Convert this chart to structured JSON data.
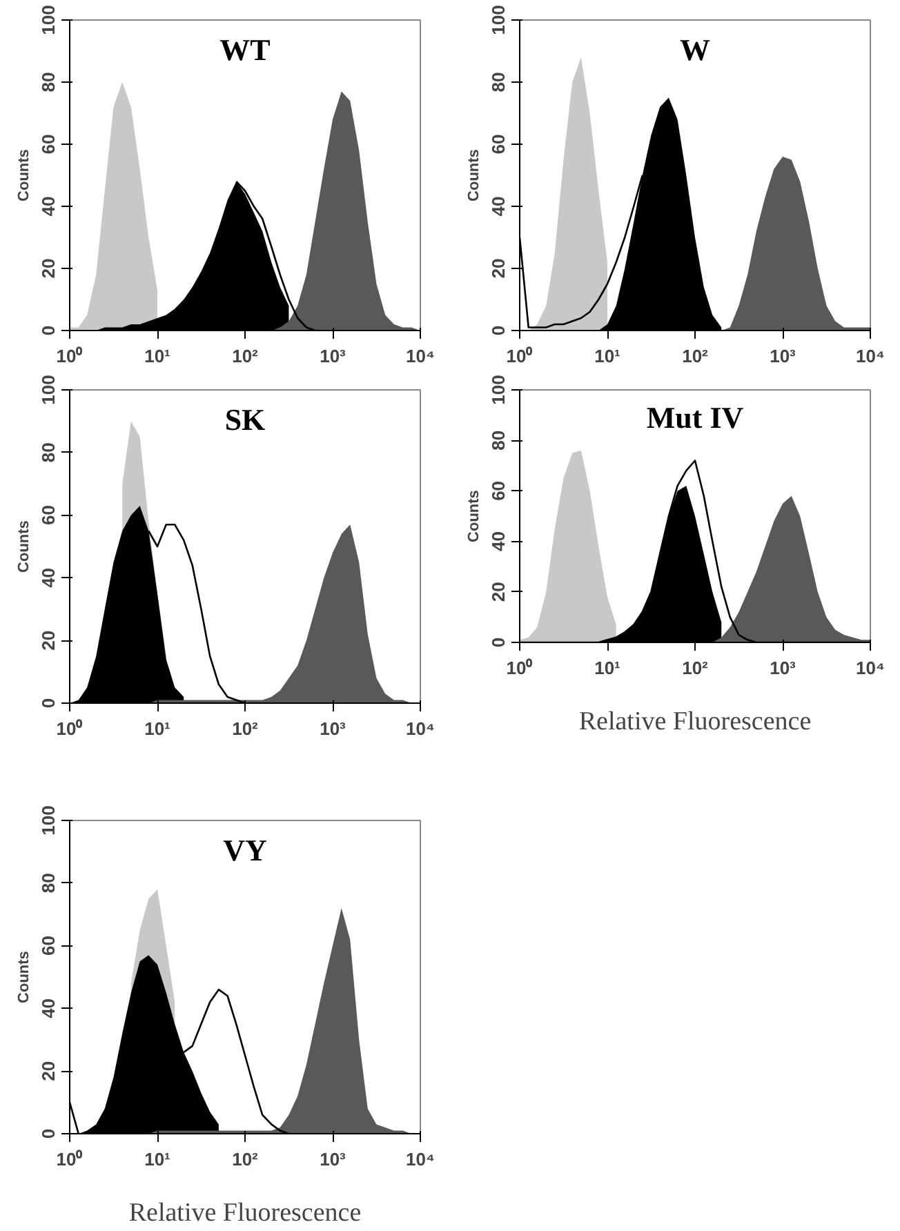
{
  "chart_data": [
    {
      "type": "area",
      "title": "WT",
      "ylabel": "Counts",
      "log": "x",
      "xlim": [
        1,
        10000
      ],
      "ylim": [
        0,
        100
      ],
      "xticks": [
        {
          "value": 1,
          "label": "10⁰"
        },
        {
          "value": 10,
          "label": "10¹"
        },
        {
          "value": 100,
          "label": "10²"
        },
        {
          "value": 1000,
          "label": "10³"
        },
        {
          "value": 10000,
          "label": "10⁴"
        }
      ],
      "yticks": [
        0,
        20,
        40,
        60,
        80,
        100
      ],
      "x": [
        1,
        1.26,
        1.58,
        2,
        2.51,
        3.16,
        3.98,
        5.01,
        6.31,
        7.94,
        10,
        12.6,
        15.8,
        20,
        25.1,
        31.6,
        39.8,
        50.1,
        63.1,
        79.4,
        100,
        126,
        158,
        200,
        251,
        316,
        398,
        501,
        631,
        794,
        1000,
        1260,
        1580,
        2000,
        2510,
        3160,
        3980,
        5010,
        6310,
        7940,
        10000
      ],
      "series": [
        {
          "color": "#c8c8c8",
          "x": [
            1,
            1.26,
            1.58,
            2,
            2.51,
            3.16,
            3.98,
            5.01,
            6.31,
            7.94,
            10
          ],
          "values": [
            1,
            1,
            5,
            18,
            45,
            72,
            80,
            72,
            52,
            30,
            13
          ]
        },
        {
          "color": "#000000",
          "x": [
            1,
            1.26,
            1.58,
            2,
            2.51,
            3.16,
            3.98,
            5.01,
            6.31,
            7.94,
            10,
            12.6,
            15.8,
            20,
            25.1,
            31.6,
            39.8,
            50.1,
            63.1,
            79.4,
            100,
            126,
            158,
            200,
            251,
            316
          ],
          "values": [
            0,
            0,
            0,
            0,
            1,
            1,
            1,
            2,
            2,
            3,
            4,
            5,
            7,
            10,
            14,
            19,
            25,
            33,
            42,
            48,
            44,
            38,
            32,
            22,
            14,
            8
          ]
        },
        {
          "color": "#595959",
          "values": [
            0,
            0,
            0,
            0,
            0,
            0,
            0,
            0,
            0,
            0,
            0,
            0,
            0,
            0,
            0,
            0,
            0,
            0,
            0,
            0,
            0,
            0,
            0,
            0,
            1,
            3,
            8,
            18,
            35,
            52,
            68,
            77,
            74,
            58,
            35,
            15,
            5,
            2,
            1,
            1,
            0
          ]
        },
        {
          "type": "line",
          "color": "#000000",
          "values": [
            null,
            null,
            null,
            null,
            null,
            null,
            null,
            null,
            null,
            null,
            null,
            null,
            null,
            null,
            null,
            null,
            null,
            null,
            null,
            48,
            45,
            40,
            36,
            27,
            18,
            10,
            4,
            1,
            0,
            null,
            null,
            null,
            null,
            null,
            null,
            null,
            null,
            null,
            null,
            null,
            null
          ]
        }
      ]
    },
    {
      "type": "area",
      "title": "W",
      "ylabel": "Counts",
      "log": "x",
      "xlim": [
        1,
        10000
      ],
      "ylim": [
        0,
        100
      ],
      "xticks": [
        {
          "value": 1,
          "label": "10⁰"
        },
        {
          "value": 10,
          "label": "10¹"
        },
        {
          "value": 100,
          "label": "10²"
        },
        {
          "value": 1000,
          "label": "10³"
        },
        {
          "value": 10000,
          "label": "10⁴"
        }
      ],
      "yticks": [
        0,
        20,
        40,
        60,
        80,
        100
      ],
      "x": [
        1,
        1.26,
        1.58,
        2,
        2.51,
        3.16,
        3.98,
        5.01,
        6.31,
        7.94,
        10,
        12.6,
        15.8,
        20,
        25.1,
        31.6,
        39.8,
        50.1,
        63.1,
        79.4,
        100,
        126,
        158,
        200,
        251,
        316,
        398,
        501,
        631,
        794,
        1000,
        1260,
        1580,
        2000,
        2510,
        3160,
        3980,
        5010,
        6310,
        7940,
        10000
      ],
      "series": [
        {
          "color": "#c8c8c8",
          "x": [
            1,
            1.26,
            1.58,
            2,
            2.51,
            3.16,
            3.98,
            5.01,
            6.31,
            7.94,
            10
          ],
          "values": [
            0,
            0,
            2,
            8,
            25,
            55,
            80,
            88,
            70,
            45,
            22
          ]
        },
        {
          "color": "#000000",
          "x": [
            7.94,
            10,
            12.6,
            15.8,
            20,
            25.1,
            31.6,
            39.8,
            50.1,
            63.1,
            79.4,
            100,
            126,
            158,
            200
          ],
          "values": [
            0,
            2,
            8,
            20,
            35,
            50,
            63,
            72,
            75,
            68,
            50,
            30,
            14,
            5,
            1
          ]
        },
        {
          "color": "#595959",
          "values": [
            0,
            0,
            0,
            0,
            0,
            0,
            0,
            0,
            0,
            0,
            0,
            0,
            0,
            0,
            0,
            0,
            0,
            0,
            0,
            0,
            0,
            0,
            0,
            0,
            1,
            8,
            18,
            32,
            43,
            52,
            56,
            55,
            48,
            35,
            20,
            8,
            3,
            1,
            1,
            1,
            1
          ]
        },
        {
          "type": "line",
          "color": "#000000",
          "values": [
            30,
            1,
            1,
            1,
            2,
            2,
            3,
            4,
            6,
            10,
            15,
            22,
            30,
            40,
            50,
            null,
            null,
            null,
            null,
            null,
            null,
            null,
            null,
            null,
            null,
            null,
            null,
            null,
            null,
            null,
            null,
            null,
            null,
            null,
            null,
            null,
            null,
            null,
            null,
            null,
            null
          ]
        }
      ]
    },
    {
      "type": "area",
      "title": "SK",
      "ylabel": "Counts",
      "log": "x",
      "xlim": [
        1,
        10000
      ],
      "ylim": [
        0,
        100
      ],
      "xticks": [
        {
          "value": 1,
          "label": "10⁰"
        },
        {
          "value": 10,
          "label": "10¹"
        },
        {
          "value": 100,
          "label": "10²"
        },
        {
          "value": 1000,
          "label": "10³"
        },
        {
          "value": 10000,
          "label": "10⁴"
        }
      ],
      "yticks": [
        0,
        20,
        40,
        60,
        80,
        100
      ],
      "x": [
        1,
        1.26,
        1.58,
        2,
        2.51,
        3.16,
        3.98,
        5.01,
        6.31,
        7.94,
        10,
        12.6,
        15.8,
        20,
        25.1,
        31.6,
        39.8,
        50.1,
        63.1,
        79.4,
        100,
        126,
        158,
        200,
        251,
        316,
        398,
        501,
        631,
        794,
        1000,
        1260,
        1580,
        2000,
        2510,
        3160,
        3980,
        5010,
        6310,
        7940,
        10000
      ],
      "series": [
        {
          "color": "#c8c8c8",
          "x": [
            3.98,
            5.01,
            6.31,
            7.94,
            10,
            12.6
          ],
          "values": [
            70,
            90,
            85,
            58,
            35,
            15
          ]
        },
        {
          "color": "#000000",
          "x": [
            1,
            1.26,
            1.58,
            2,
            2.51,
            3.16,
            3.98,
            5.01,
            6.31,
            7.94,
            10,
            12.6,
            15.8,
            20
          ],
          "values": [
            0,
            1,
            5,
            15,
            30,
            45,
            55,
            60,
            63,
            55,
            35,
            14,
            5,
            2
          ]
        },
        {
          "color": "#595959",
          "values": [
            0,
            0,
            0,
            0,
            0,
            0,
            0,
            0,
            0,
            0,
            1,
            1,
            1,
            1,
            1,
            1,
            1,
            1,
            1,
            1,
            1,
            1,
            1,
            2,
            4,
            8,
            12,
            20,
            30,
            40,
            48,
            54,
            57,
            45,
            22,
            8,
            3,
            1,
            1,
            0,
            0
          ]
        },
        {
          "type": "line",
          "color": "#000000",
          "values": [
            null,
            null,
            null,
            null,
            null,
            null,
            null,
            null,
            null,
            55,
            50,
            57,
            57,
            52,
            44,
            30,
            15,
            6,
            2,
            1,
            0,
            null,
            null,
            null,
            null,
            null,
            null,
            null,
            null,
            null,
            null,
            null,
            null,
            null,
            null,
            null,
            null,
            null,
            null,
            null,
            null
          ]
        }
      ]
    },
    {
      "type": "area",
      "title": "Mut IV",
      "ylabel": "Counts",
      "xlabel": "Relative Fluorescence",
      "log": "x",
      "xlim": [
        1,
        10000
      ],
      "ylim": [
        0,
        100
      ],
      "xticks": [
        {
          "value": 1,
          "label": "10⁰"
        },
        {
          "value": 10,
          "label": "10¹"
        },
        {
          "value": 100,
          "label": "10²"
        },
        {
          "value": 1000,
          "label": "10³"
        },
        {
          "value": 10000,
          "label": "10⁴"
        }
      ],
      "yticks": [
        0,
        20,
        40,
        60,
        80,
        100
      ],
      "x": [
        1,
        1.26,
        1.58,
        2,
        2.51,
        3.16,
        3.98,
        5.01,
        6.31,
        7.94,
        10,
        12.6,
        15.8,
        20,
        25.1,
        31.6,
        39.8,
        50.1,
        63.1,
        79.4,
        100,
        126,
        158,
        200,
        251,
        316,
        398,
        501,
        631,
        794,
        1000,
        1260,
        1580,
        2000,
        2510,
        3160,
        3980,
        5010,
        6310,
        7940,
        10000
      ],
      "series": [
        {
          "color": "#c8c8c8",
          "x": [
            1,
            1.26,
            1.58,
            2,
            2.51,
            3.16,
            3.98,
            5.01,
            6.31,
            7.94,
            10,
            12.6
          ],
          "values": [
            1,
            2,
            6,
            20,
            45,
            65,
            75,
            76,
            60,
            38,
            18,
            7
          ]
        },
        {
          "color": "#000000",
          "x": [
            7.94,
            10,
            12.6,
            15.8,
            20,
            25.1,
            31.6,
            39.8,
            50.1,
            63.1,
            79.4,
            100,
            126,
            158,
            200
          ],
          "values": [
            0,
            1,
            2,
            4,
            7,
            12,
            20,
            35,
            50,
            60,
            62,
            50,
            35,
            20,
            8
          ]
        },
        {
          "color": "#595959",
          "values": [
            0,
            0,
            0,
            0,
            0,
            0,
            0,
            0,
            0,
            0,
            0,
            0,
            0,
            0,
            0,
            0,
            0,
            0,
            0,
            0,
            0,
            0,
            0,
            2,
            6,
            12,
            20,
            28,
            38,
            48,
            55,
            58,
            50,
            35,
            20,
            10,
            5,
            3,
            2,
            1,
            1
          ]
        },
        {
          "type": "line",
          "color": "#000000",
          "values": [
            0,
            0,
            0,
            0,
            0,
            0,
            0,
            0,
            0,
            0,
            1,
            2,
            4,
            7,
            12,
            20,
            35,
            50,
            62,
            68,
            72,
            58,
            40,
            22,
            10,
            3,
            1,
            0,
            0,
            0,
            0,
            0,
            0,
            0,
            0,
            0,
            0,
            0,
            0,
            0,
            0
          ]
        }
      ]
    },
    {
      "type": "area",
      "title": "VY",
      "ylabel": "Counts",
      "xlabel": "Relative Fluorescence",
      "log": "x",
      "xlim": [
        1,
        10000
      ],
      "ylim": [
        0,
        100
      ],
      "xticks": [
        {
          "value": 1,
          "label": "10⁰"
        },
        {
          "value": 10,
          "label": "10¹"
        },
        {
          "value": 100,
          "label": "10²"
        },
        {
          "value": 1000,
          "label": "10³"
        },
        {
          "value": 10000,
          "label": "10⁴"
        }
      ],
      "yticks": [
        0,
        20,
        40,
        60,
        80,
        100
      ],
      "x": [
        1,
        1.26,
        1.58,
        2,
        2.51,
        3.16,
        3.98,
        5.01,
        6.31,
        7.94,
        10,
        12.6,
        15.8,
        20,
        25.1,
        31.6,
        39.8,
        50.1,
        63.1,
        79.4,
        100,
        126,
        158,
        200,
        251,
        316,
        398,
        501,
        631,
        794,
        1000,
        1260,
        1580,
        2000,
        2510,
        3160,
        3980,
        5010,
        6310,
        7940,
        10000
      ],
      "series": [
        {
          "color": "#c8c8c8",
          "x": [
            5.01,
            6.31,
            7.94,
            10,
            12.6,
            15.8
          ],
          "values": [
            48,
            65,
            75,
            78,
            60,
            42
          ]
        },
        {
          "color": "#000000",
          "x": [
            1,
            1.26,
            1.58,
            2,
            2.51,
            3.16,
            3.98,
            5.01,
            6.31,
            7.94,
            10,
            12.6,
            15.8,
            20,
            25.1,
            31.6,
            39.8,
            50.1
          ],
          "values": [
            0,
            0,
            1,
            3,
            8,
            18,
            32,
            45,
            55,
            57,
            54,
            45,
            35,
            26,
            20,
            13,
            7,
            3
          ]
        },
        {
          "color": "#595959",
          "values": [
            0,
            0,
            0,
            0,
            0,
            0,
            0,
            0,
            0,
            0,
            1,
            1,
            1,
            1,
            1,
            1,
            1,
            1,
            1,
            1,
            1,
            1,
            1,
            1,
            2,
            6,
            12,
            22,
            35,
            48,
            60,
            72,
            62,
            30,
            8,
            3,
            2,
            1,
            1,
            0,
            0
          ]
        },
        {
          "type": "line",
          "color": "#000000",
          "values": [
            10,
            0,
            null,
            null,
            null,
            null,
            null,
            null,
            null,
            null,
            null,
            null,
            null,
            26,
            28,
            35,
            42,
            46,
            44,
            35,
            25,
            15,
            6,
            3,
            1,
            0,
            null,
            null,
            null,
            null,
            null,
            null,
            null,
            null,
            null,
            null,
            null,
            null,
            null,
            null,
            null
          ]
        }
      ]
    }
  ]
}
